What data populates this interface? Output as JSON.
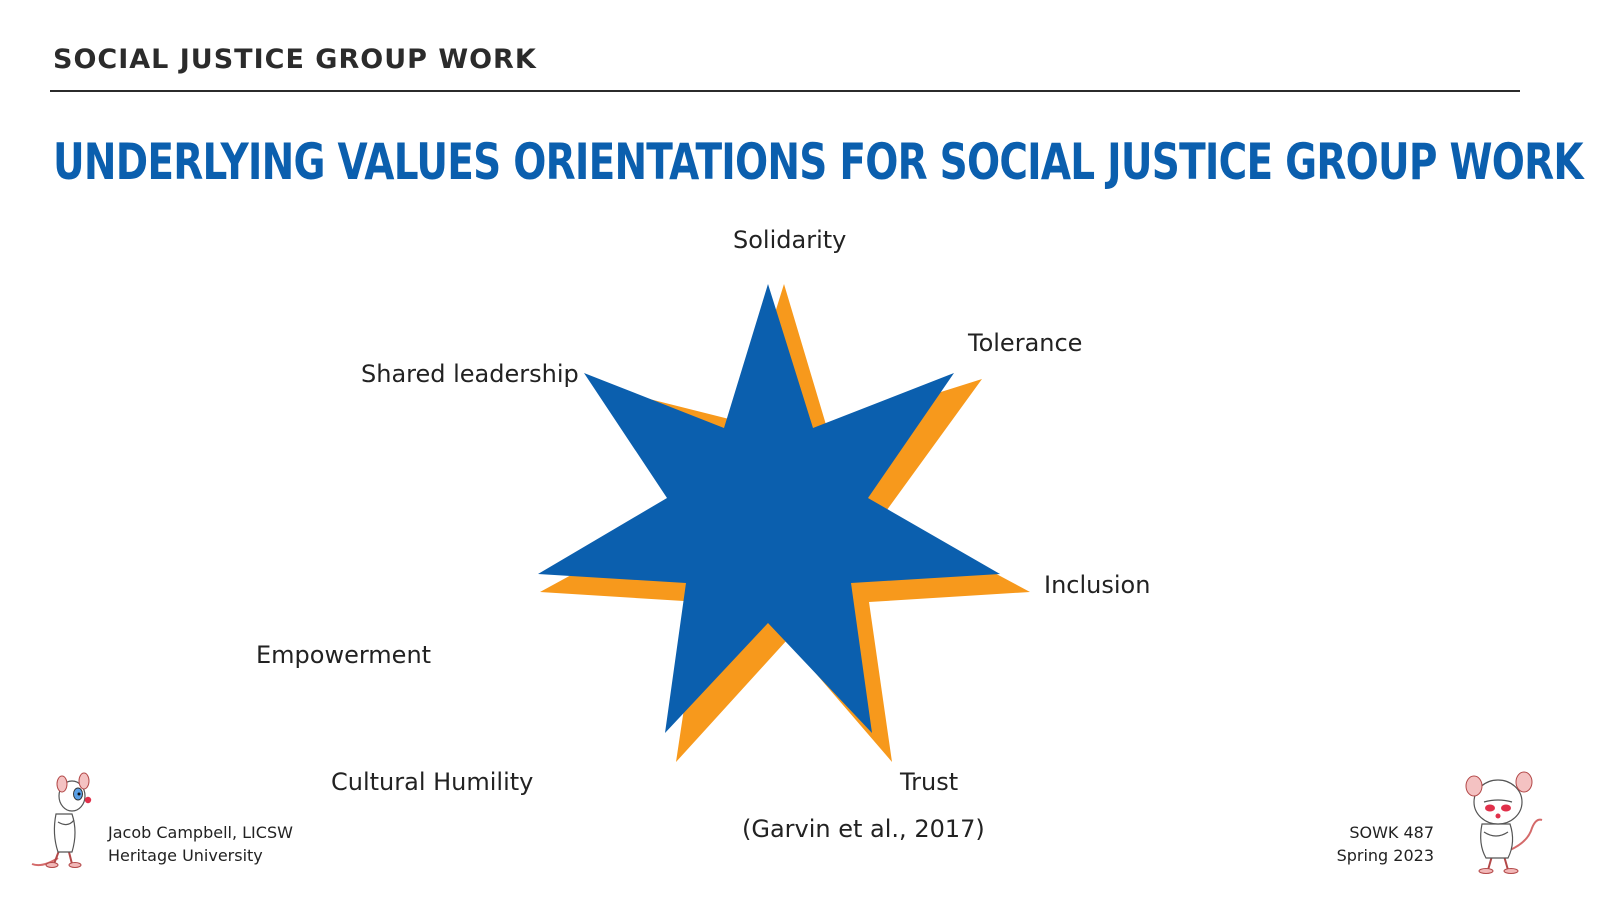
{
  "header": {
    "section_title": "SOCIAL JUSTICE GROUP WORK"
  },
  "slide": {
    "title": "UNDERLYING VALUES ORIENTATIONS FOR SOCIAL JUSTICE GROUP WORK"
  },
  "diagram": {
    "shape": "seven-point star",
    "fill_color": "#0b5fae",
    "shadow_color": "#f7991c",
    "values": [
      "Solidarity",
      "Tolerance",
      "Inclusion",
      "Trust",
      "Cultural Humility",
      "Empowerment",
      "Shared leadership"
    ],
    "citation": "(Garvin et al., 2017)"
  },
  "footer": {
    "author": "Jacob Campbell, LICSW",
    "institution": "Heritage University",
    "course": "SOWK 487",
    "term": "Spring 2023",
    "left_mascot_icon": "pinky-cartoon-mouse-icon",
    "right_mascot_icon": "brain-cartoon-mouse-icon"
  }
}
